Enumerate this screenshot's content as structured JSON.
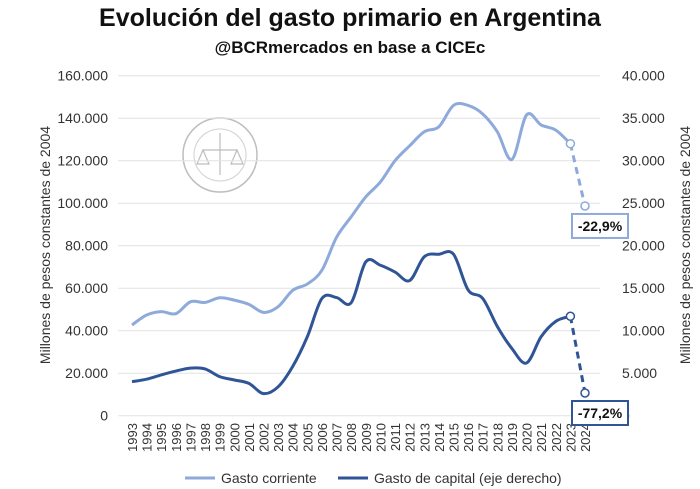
{
  "chart_data": {
    "type": "line",
    "title": "Evolución del gasto primario en Argentina",
    "subtitle": "@BCRmercados en base a CICEc",
    "ylabel": "Millones de pesos constantes de 2004",
    "y2label": "Millones de pesos constantes de 2004",
    "ylim": [
      0,
      160000
    ],
    "y2lim": [
      0,
      40000
    ],
    "yticks": [
      "0",
      "20.000",
      "40.000",
      "60.000",
      "80.000",
      "100.000",
      "120.000",
      "140.000",
      "160.000"
    ],
    "y2ticks": [
      "0",
      "5.000",
      "10.000",
      "15.000",
      "20.000",
      "25.000",
      "30.000",
      "35.000",
      "40.000"
    ],
    "x": [
      "1993",
      "1994",
      "1995",
      "1996",
      "1997",
      "1998",
      "1999",
      "2000",
      "2001",
      "2002",
      "2003",
      "2004",
      "2005",
      "2006",
      "2007",
      "2008",
      "2009",
      "2010",
      "2011",
      "2012",
      "2013",
      "2014",
      "2015",
      "2016",
      "2017",
      "2018",
      "2019",
      "2020",
      "2021",
      "2022",
      "2023",
      "2024"
    ],
    "grid": true,
    "legend": "bottom",
    "series": [
      {
        "name": "Gasto corriente",
        "axis": "left",
        "color": "#8eaadb",
        "values": [
          42700,
          47400,
          49000,
          48000,
          53600,
          53300,
          55500,
          54400,
          52400,
          48600,
          51300,
          59000,
          62000,
          68500,
          84000,
          93600,
          103000,
          110000,
          120000,
          127000,
          133600,
          136000,
          146000,
          146000,
          142000,
          133600,
          120600,
          141500,
          136800,
          134400,
          128000,
          98700
        ],
        "annotation": "-22,9%"
      },
      {
        "name": "Gasto de capital (eje derecho)",
        "axis": "right",
        "color": "#2f5597",
        "values": [
          4000,
          4300,
          4800,
          5250,
          5600,
          5500,
          4600,
          4200,
          3800,
          2600,
          3400,
          5800,
          9300,
          13800,
          13900,
          13300,
          18100,
          17700,
          16900,
          15900,
          18700,
          19000,
          19000,
          14800,
          13800,
          10500,
          7900,
          6200,
          9300,
          11100,
          11700,
          2670
        ],
        "annotation": "-77,2%"
      }
    ]
  }
}
